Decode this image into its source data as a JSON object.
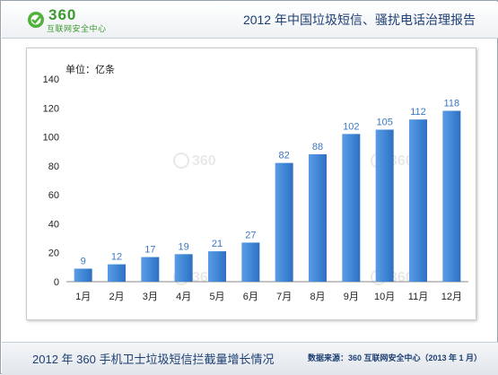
{
  "header": {
    "logo_number": "360",
    "logo_subtitle": "互联网安全中心",
    "report_title": "2012 年中国垃圾短信、骚扰电话治理报告"
  },
  "colors": {
    "bar": "#3f86d6",
    "bar_light": "#6ea7e6",
    "value_label": "#3a78c2",
    "title": "#1e3f73",
    "logo": "#3a9a2e"
  },
  "watermark": "360",
  "chart_data": {
    "type": "bar",
    "unit_label": "单位：亿条",
    "categories": [
      "1月",
      "2月",
      "3月",
      "4月",
      "5月",
      "6月",
      "7月",
      "8月",
      "9月",
      "10月",
      "11月",
      "12月"
    ],
    "values": [
      9,
      12,
      17,
      19,
      21,
      27,
      82,
      88,
      102,
      105,
      112,
      118
    ],
    "ylim": [
      0,
      140
    ],
    "yticks": [
      0,
      20,
      40,
      60,
      80,
      100,
      120,
      140
    ],
    "grid": false,
    "legend": "none"
  },
  "footer": {
    "caption": "2012 年 360 手机卫士垃圾短信拦截量增长情况",
    "source": "数据来源：360 互联网安全中心（2013 年 1 月）"
  }
}
